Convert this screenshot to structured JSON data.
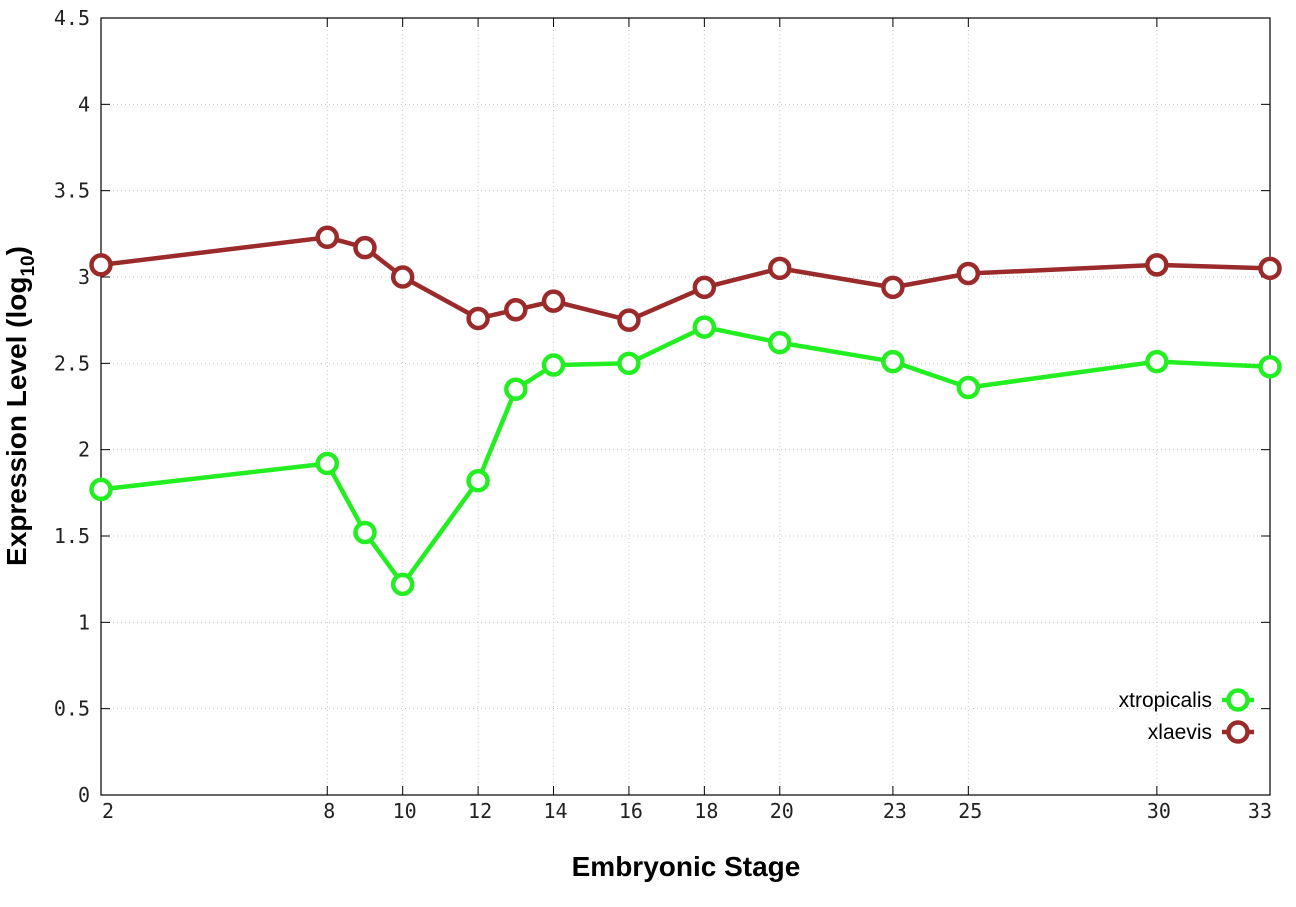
{
  "chart_data": {
    "type": "line",
    "xlabel": "Embryonic Stage",
    "ylabel_main": "Expression Level (log",
    "ylabel_sub": "10",
    "ylabel_close": ")",
    "x_ticks": [
      "2",
      "8",
      "10",
      "12",
      "14",
      "16",
      "18",
      "20",
      "23",
      "25",
      "30",
      "33"
    ],
    "ylim": [
      0,
      4.5
    ],
    "y_ticks": [
      "0",
      "0.5",
      "1",
      "1.5",
      "2",
      "2.5",
      "3",
      "3.5",
      "4",
      "4.5"
    ],
    "grid": true,
    "legend_position": "bottom-right",
    "x": [
      2,
      8,
      9,
      10,
      12,
      13,
      14,
      16,
      18,
      20,
      23,
      25,
      30,
      33
    ],
    "series": [
      {
        "name": "xtropicalis",
        "color": "#22ee22",
        "values": [
          1.77,
          1.92,
          1.52,
          1.22,
          1.82,
          2.35,
          2.49,
          2.5,
          2.71,
          2.62,
          2.51,
          2.36,
          2.51,
          2.48
        ]
      },
      {
        "name": "xlaevis",
        "color": "#9b2a2a",
        "values": [
          3.07,
          3.23,
          3.17,
          3.0,
          2.76,
          2.81,
          2.86,
          2.75,
          2.94,
          3.05,
          2.94,
          3.02,
          3.07,
          3.05
        ]
      }
    ]
  }
}
